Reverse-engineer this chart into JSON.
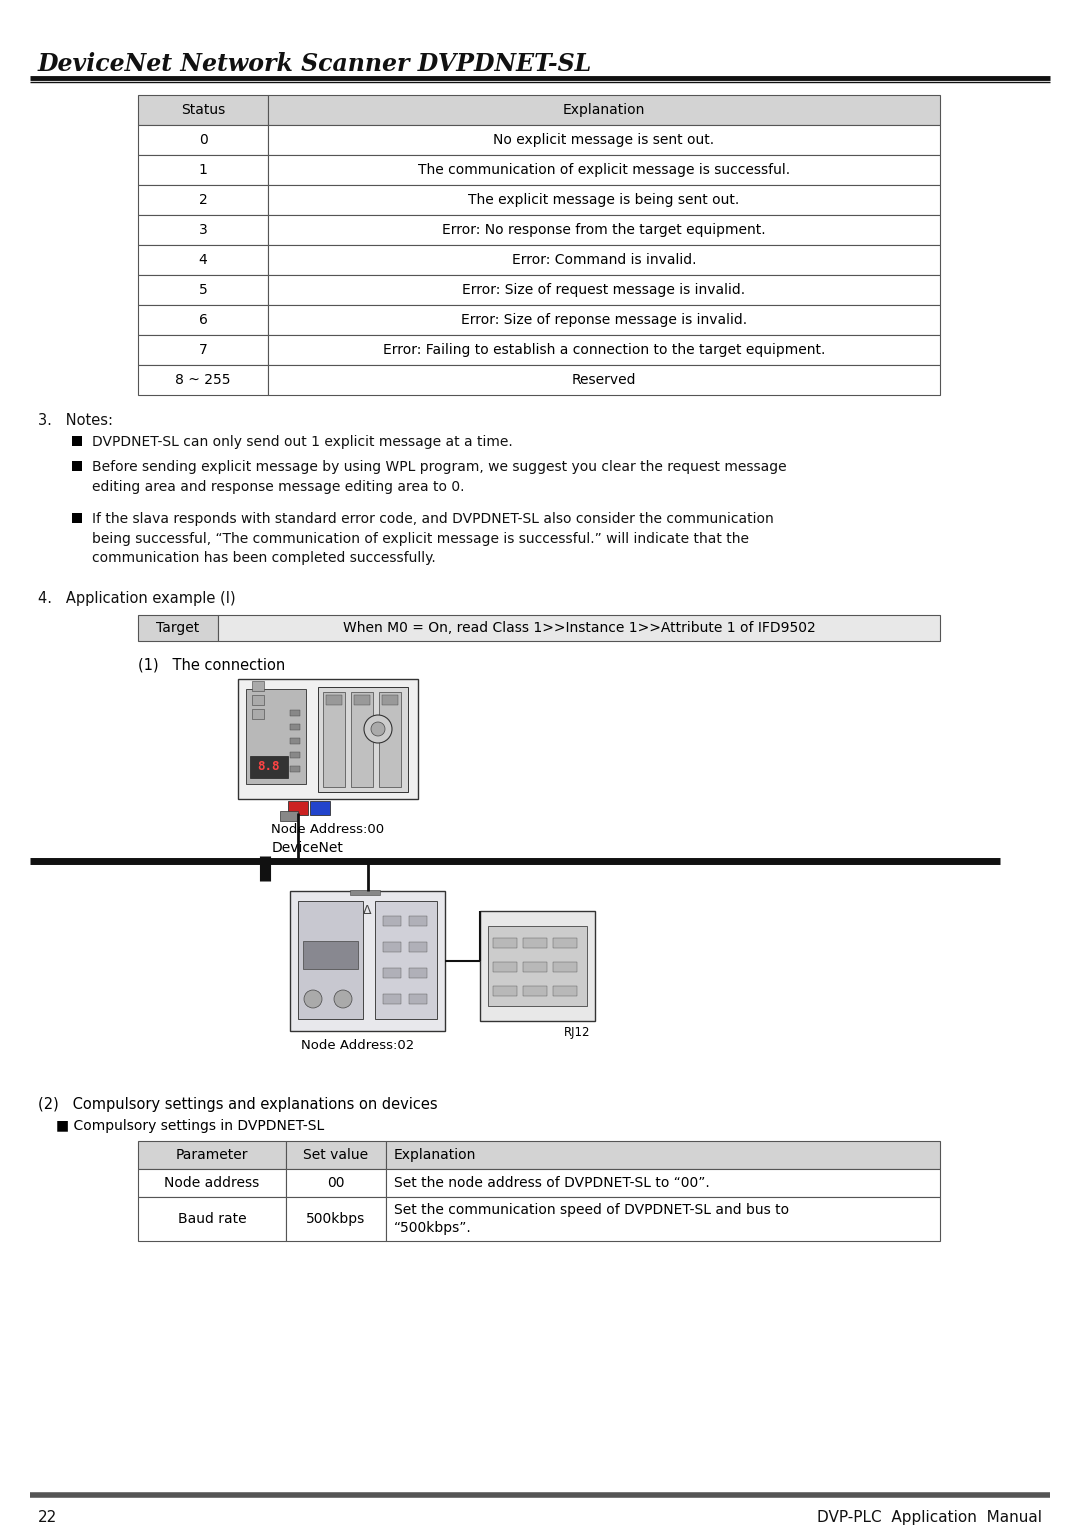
{
  "page_title": "DeviceNet Network Scanner DVPDNET-SL",
  "page_number": "22",
  "page_footer_right": "DVP-PLC  Application  Manual",
  "bg_color": "#ffffff",
  "table1": {
    "header": [
      "Status",
      "Explanation"
    ],
    "header_bg": "#d3d3d3",
    "rows": [
      [
        "0",
        "No explicit message is sent out."
      ],
      [
        "1",
        "The communication of explicit message is successful."
      ],
      [
        "2",
        "The explicit message is being sent out."
      ],
      [
        "3",
        "Error: No response from the target equipment."
      ],
      [
        "4",
        "Error: Command is invalid."
      ],
      [
        "5",
        "Error: Size of request message is invalid."
      ],
      [
        "6",
        "Error: Size of reponse message is invalid."
      ],
      [
        "7",
        "Error: Failing to establish a connection to the target equipment."
      ],
      [
        "8 ~ 255",
        "Reserved"
      ]
    ]
  },
  "notes": {
    "label": "3.   Notes:",
    "bullets": [
      "DVPDNET-SL can only send out 1 explicit message at a time.",
      "Before sending explicit message by using WPL program, we suggest you clear the request message\nediting area and response message editing area to 0.",
      "If the slava responds with standard error code, and DVPDNET-SL also consider the communication\nbeing successful, “The communication of explicit message is successful.” will indicate that the\ncommunication has been completed successfully."
    ]
  },
  "app": {
    "label": "4.   Application example (I)",
    "target_col1": "Target",
    "target_col2": "When M0 = On, read Class 1>>Instance 1>>Attribute 1 of IFD9502",
    "conn_label": "(1)   The connection",
    "node00": "Node Address:00",
    "devnet": "DeviceNet",
    "node02": "Node Address:02",
    "rj12": "RJ12"
  },
  "table2": {
    "intro": "(2)   Compulsory settings and explanations on devices",
    "subtitle": "■ Compulsory settings in DVPDNET-SL",
    "header": [
      "Parameter",
      "Set value",
      "Explanation"
    ],
    "header_bg": "#d3d3d3",
    "rows": [
      [
        "Node address",
        "00",
        "Set the node address of DVPDNET-SL to “00”."
      ],
      [
        "Baud rate",
        "500kbps",
        "Set the communication speed of DVPDNET-SL and bus to\n“500kbps”."
      ]
    ]
  }
}
